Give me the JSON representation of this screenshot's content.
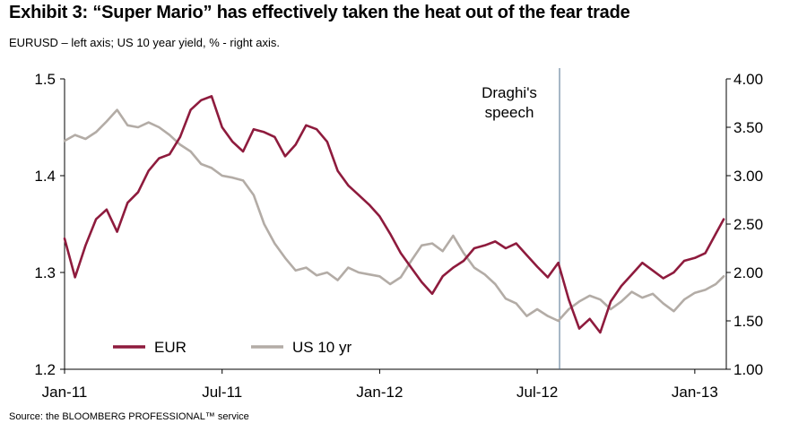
{
  "header": {
    "title": "Exhibit 3: “Super Mario” has effectively taken the heat out of the fear trade",
    "subtitle": "EURUSD – left axis; US 10 year yield, % - right axis."
  },
  "footer": {
    "source": "Source: the BLOOMBERG PROFESSIONAL™ service"
  },
  "chart_data": {
    "type": "line",
    "title": "",
    "x_ticks": [
      "Jan-11",
      "Jul-11",
      "Jan-12",
      "Jul-12",
      "Jan-13"
    ],
    "x_tick_months": [
      0,
      6,
      12,
      18,
      24
    ],
    "x_range_months": [
      0,
      25.2
    ],
    "left_axis": {
      "ticks": [
        "1.2",
        "1.3",
        "1.4",
        "1.5"
      ],
      "ylim": [
        1.2,
        1.5
      ]
    },
    "right_axis": {
      "ticks": [
        "1.00",
        "1.50",
        "2.00",
        "2.50",
        "3.00",
        "3.50",
        "4.00"
      ],
      "ylim": [
        1.0,
        4.0
      ]
    },
    "grid": false,
    "legend_position": "bottom-left",
    "annotation": {
      "text_line1": "Draghi's",
      "text_line2": "speech",
      "x_month": 18.85
    },
    "colors": {
      "eur": "#8e1b3d",
      "us10": "#b3aca6",
      "annotation_line": "#4d6e8f"
    },
    "series": [
      {
        "name": "EUR",
        "axis": "left",
        "x": [
          0,
          0.4,
          0.8,
          1.2,
          1.6,
          2,
          2.4,
          2.8,
          3.2,
          3.6,
          4,
          4.4,
          4.8,
          5.2,
          5.6,
          6,
          6.4,
          6.8,
          7.2,
          7.6,
          8,
          8.4,
          8.8,
          9.2,
          9.6,
          10,
          10.4,
          10.8,
          11.2,
          11.6,
          12,
          12.4,
          12.8,
          13.2,
          13.6,
          14,
          14.4,
          14.8,
          15.2,
          15.6,
          16,
          16.4,
          16.8,
          17.2,
          17.6,
          18,
          18.4,
          18.8,
          19.2,
          19.6,
          20,
          20.4,
          20.8,
          21.2,
          21.6,
          22,
          22.4,
          22.8,
          23.2,
          23.6,
          24,
          24.4,
          24.8,
          25.1
        ],
        "values": [
          1.335,
          1.295,
          1.328,
          1.355,
          1.365,
          1.342,
          1.372,
          1.383,
          1.405,
          1.418,
          1.422,
          1.44,
          1.468,
          1.478,
          1.482,
          1.45,
          1.435,
          1.425,
          1.448,
          1.445,
          1.44,
          1.42,
          1.432,
          1.452,
          1.448,
          1.435,
          1.405,
          1.39,
          1.38,
          1.37,
          1.358,
          1.34,
          1.32,
          1.305,
          1.29,
          1.278,
          1.296,
          1.305,
          1.312,
          1.325,
          1.328,
          1.332,
          1.325,
          1.33,
          1.318,
          1.306,
          1.295,
          1.31,
          1.272,
          1.242,
          1.252,
          1.238,
          1.27,
          1.286,
          1.298,
          1.31,
          1.302,
          1.294,
          1.3,
          1.312,
          1.315,
          1.32,
          1.34,
          1.355
        ]
      },
      {
        "name": "US 10 yr",
        "axis": "right",
        "x": [
          0,
          0.4,
          0.8,
          1.2,
          1.6,
          2,
          2.4,
          2.8,
          3.2,
          3.6,
          4,
          4.4,
          4.8,
          5.2,
          5.6,
          6,
          6.4,
          6.8,
          7.2,
          7.6,
          8,
          8.4,
          8.8,
          9.2,
          9.6,
          10,
          10.4,
          10.8,
          11.2,
          11.6,
          12,
          12.4,
          12.8,
          13.2,
          13.6,
          14,
          14.4,
          14.8,
          15.2,
          15.6,
          16,
          16.4,
          16.8,
          17.2,
          17.6,
          18,
          18.4,
          18.8,
          19.2,
          19.6,
          20,
          20.4,
          20.8,
          21.2,
          21.6,
          22,
          22.4,
          22.8,
          23.2,
          23.6,
          24,
          24.4,
          24.8,
          25.1
        ],
        "values": [
          3.36,
          3.42,
          3.38,
          3.45,
          3.56,
          3.68,
          3.52,
          3.5,
          3.55,
          3.5,
          3.42,
          3.32,
          3.25,
          3.12,
          3.08,
          3.0,
          2.98,
          2.95,
          2.8,
          2.5,
          2.3,
          2.15,
          2.02,
          2.05,
          1.97,
          2.0,
          1.92,
          2.05,
          2.0,
          1.98,
          1.96,
          1.88,
          1.95,
          2.12,
          2.28,
          2.3,
          2.22,
          2.38,
          2.2,
          2.05,
          1.98,
          1.88,
          1.73,
          1.68,
          1.55,
          1.62,
          1.55,
          1.5,
          1.62,
          1.7,
          1.76,
          1.72,
          1.62,
          1.7,
          1.8,
          1.74,
          1.78,
          1.68,
          1.6,
          1.72,
          1.79,
          1.82,
          1.88,
          1.96
        ]
      }
    ]
  }
}
